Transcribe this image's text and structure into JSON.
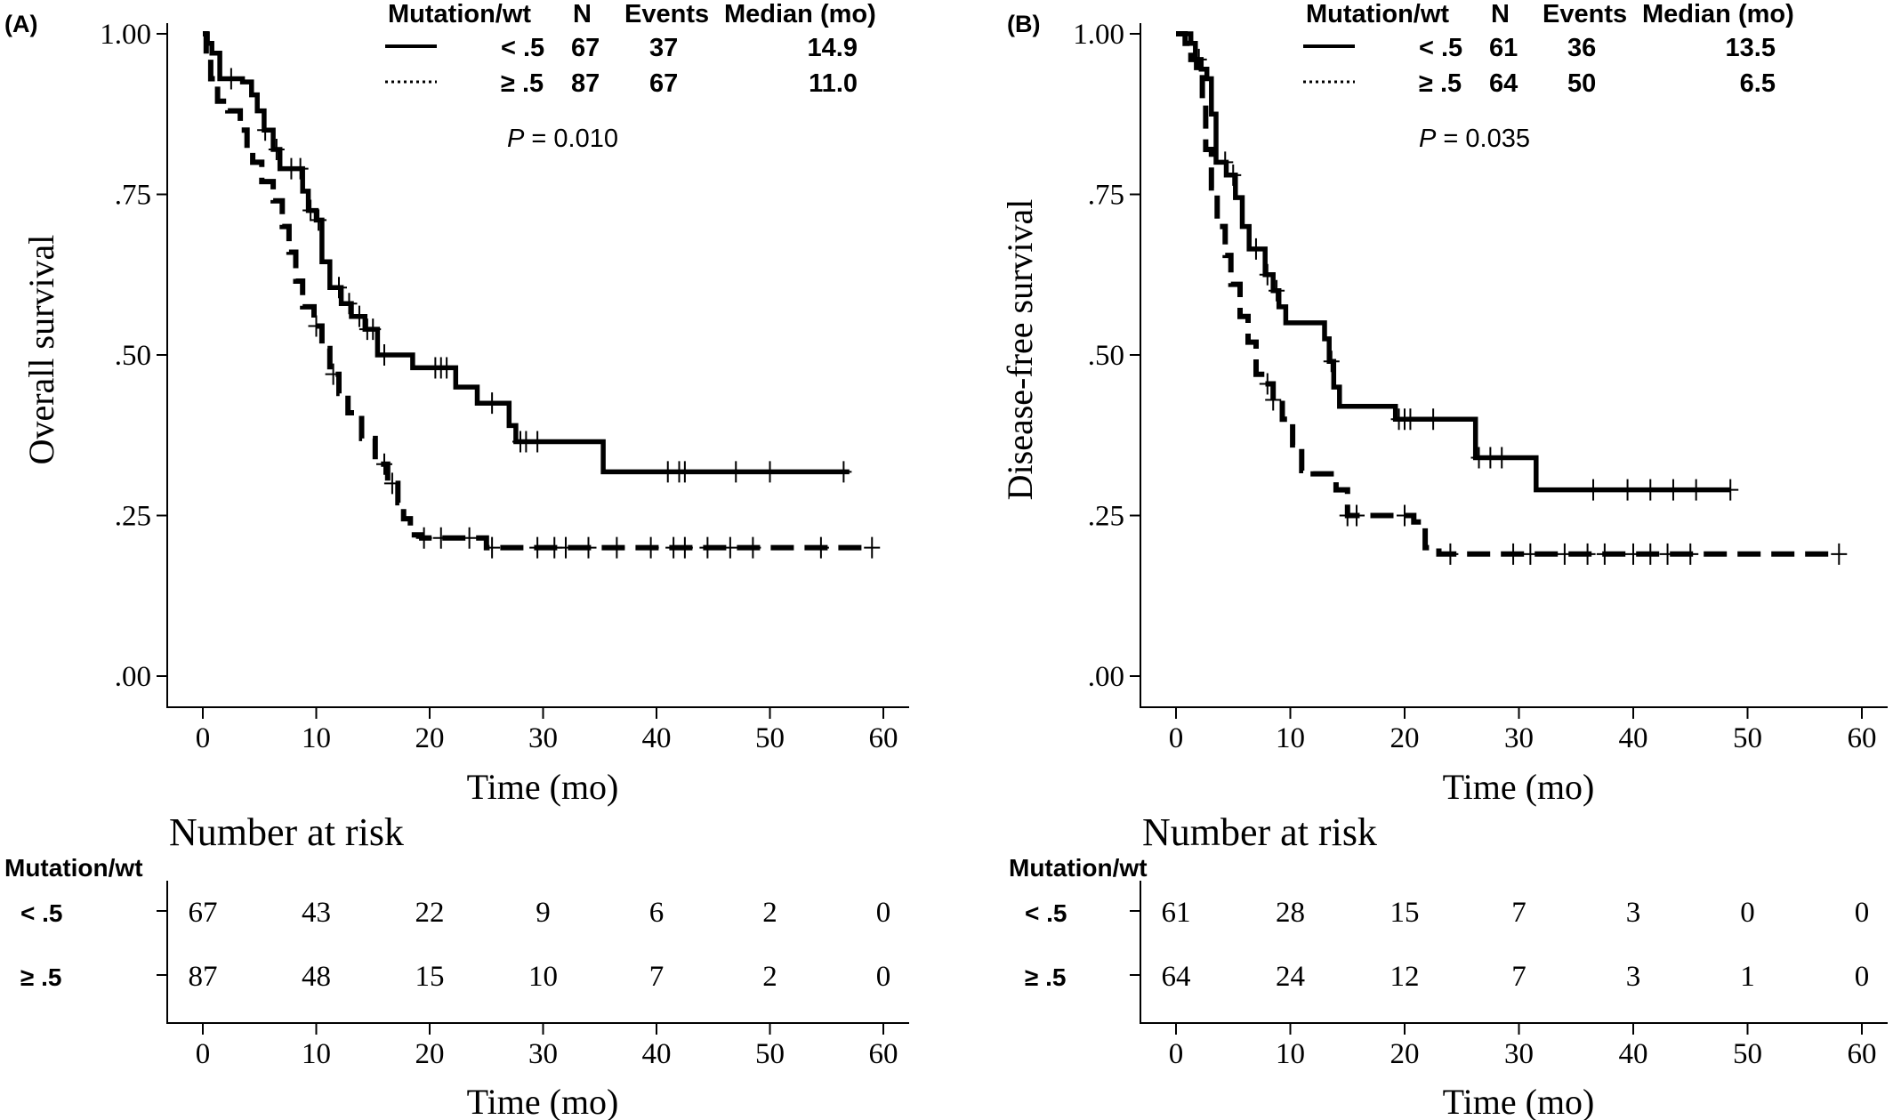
{
  "chart_data": [
    {
      "type": "line",
      "panel_label": "(A)",
      "ylabel": "Overall survival",
      "xlabel": "Time (mo)",
      "xticks": [
        0,
        10,
        20,
        30,
        40,
        50,
        60
      ],
      "yticks": [
        ".00",
        ".25",
        ".50",
        ".75",
        "1.00"
      ],
      "xlim": [
        -3,
        63
      ],
      "ylim": [
        -0.05,
        1.02
      ],
      "pvalue_label": "P",
      "pvalue_text": " = 0.010",
      "legend": {
        "headers": [
          "Mutation/wt",
          "N",
          "Events",
          "Median (mo)"
        ],
        "rows": [
          {
            "group": "< .5",
            "N": "67",
            "events": "37",
            "median": "14.9"
          },
          {
            "group": "≥ .5",
            "N": "87",
            "events": "67",
            "median": "11.0"
          }
        ]
      },
      "series": [
        {
          "style": "solid",
          "steps": [
            [
              0,
              1.0
            ],
            [
              0.4,
              0.985
            ],
            [
              0.8,
              0.97
            ],
            [
              1.5,
              0.93
            ],
            [
              3.5,
              0.925
            ],
            [
              4.3,
              0.905
            ],
            [
              4.8,
              0.88
            ],
            [
              5.4,
              0.85
            ],
            [
              6.2,
              0.82
            ],
            [
              6.8,
              0.79
            ],
            [
              8.8,
              0.755
            ],
            [
              9.3,
              0.725
            ],
            [
              10.0,
              0.71
            ],
            [
              10.5,
              0.645
            ],
            [
              11.2,
              0.605
            ],
            [
              12.2,
              0.58
            ],
            [
              13.1,
              0.56
            ],
            [
              14.3,
              0.54
            ],
            [
              15.4,
              0.5
            ],
            [
              18.5,
              0.48
            ],
            [
              22.3,
              0.45
            ],
            [
              24.2,
              0.425
            ],
            [
              27.0,
              0.39
            ],
            [
              27.6,
              0.365
            ],
            [
              35.3,
              0.318
            ],
            [
              57.0,
              0.318
            ]
          ],
          "censor_x": [
            2.5,
            5.5,
            6.5,
            7.8,
            8.6,
            9.5,
            10.2,
            12.0,
            12.9,
            13.8,
            14.5,
            15.0,
            16.0,
            20.5,
            21.0,
            21.5,
            25.5,
            28.0,
            28.5,
            29.5,
            41.0,
            42.0,
            42.5,
            47.0,
            50.0,
            56.5
          ],
          "values": [
            1.0,
            0.985,
            0.97,
            0.93,
            0.925,
            0.905,
            0.88,
            0.85,
            0.82,
            0.79,
            0.755,
            0.725,
            0.71,
            0.645,
            0.605,
            0.58,
            0.56,
            0.54,
            0.5,
            0.48,
            0.45,
            0.425,
            0.39,
            0.365,
            0.318,
            0.318
          ]
        },
        {
          "style": "dashed",
          "steps": [
            [
              0,
              1.0
            ],
            [
              0.3,
              0.96
            ],
            [
              0.7,
              0.93
            ],
            [
              1.3,
              0.895
            ],
            [
              2.2,
              0.88
            ],
            [
              3.3,
              0.85
            ],
            [
              3.9,
              0.82
            ],
            [
              4.4,
              0.8
            ],
            [
              5.2,
              0.77
            ],
            [
              6.2,
              0.74
            ],
            [
              7.0,
              0.7
            ],
            [
              7.6,
              0.66
            ],
            [
              8.2,
              0.615
            ],
            [
              8.8,
              0.575
            ],
            [
              9.8,
              0.545
            ],
            [
              10.5,
              0.51
            ],
            [
              11.2,
              0.47
            ],
            [
              12.0,
              0.44
            ],
            [
              12.8,
              0.41
            ],
            [
              14.0,
              0.37
            ],
            [
              15.2,
              0.33
            ],
            [
              16.3,
              0.3
            ],
            [
              17.2,
              0.27
            ],
            [
              17.7,
              0.245
            ],
            [
              18.3,
              0.22
            ],
            [
              19.3,
              0.215
            ],
            [
              25.0,
              0.2
            ],
            [
              59.0,
              0.2
            ]
          ],
          "censor_x": [
            10.0,
            11.5,
            16.0,
            16.7,
            19.5,
            21.0,
            23.5,
            25.5,
            29.5,
            31.0,
            32.0,
            34.0,
            36.5,
            39.5,
            41.5,
            42.5,
            44.5,
            46.5,
            48.5,
            54.5,
            59.0
          ],
          "values": [
            1.0,
            0.96,
            0.93,
            0.895,
            0.88,
            0.85,
            0.82,
            0.8,
            0.77,
            0.74,
            0.7,
            0.66,
            0.615,
            0.575,
            0.545,
            0.51,
            0.47,
            0.44,
            0.41,
            0.37,
            0.33,
            0.3,
            0.27,
            0.245,
            0.22,
            0.215,
            0.2,
            0.2
          ]
        }
      ],
      "risk_table": {
        "title": "Number at risk",
        "header": "Mutation/wt",
        "xlabel": "Time (mo)",
        "times": [
          0,
          10,
          20,
          30,
          40,
          50,
          60
        ],
        "rows": [
          {
            "label": "< .5",
            "counts": [
              "67",
              "43",
              "22",
              "9",
              "6",
              "2",
              "0"
            ]
          },
          {
            "label": "≥ .5",
            "counts": [
              "87",
              "48",
              "15",
              "10",
              "7",
              "2",
              "0"
            ]
          }
        ]
      }
    },
    {
      "type": "line",
      "panel_label": "(B)",
      "ylabel": "Disease-free survival",
      "xlabel": "Time (mo)",
      "xticks": [
        0,
        10,
        20,
        30,
        40,
        50,
        60
      ],
      "yticks": [
        ".00",
        ".25",
        ".50",
        ".75",
        "1.00"
      ],
      "xlim": [
        -3,
        63
      ],
      "ylim": [
        -0.05,
        1.02
      ],
      "pvalue_label": "P",
      "pvalue_text": " = 0.035",
      "legend": {
        "headers": [
          "Mutation/wt",
          "N",
          "Events",
          "Median (mo)"
        ],
        "rows": [
          {
            "group": "< .5",
            "N": "61",
            "events": "36",
            "median": "13.5"
          },
          {
            "group": "≥ .5",
            "N": "64",
            "events": "50",
            "median": "6.5"
          }
        ]
      },
      "series": [
        {
          "style": "solid",
          "steps": [
            [
              0,
              1.0
            ],
            [
              1.3,
              0.985
            ],
            [
              1.7,
              0.96
            ],
            [
              2.2,
              0.945
            ],
            [
              2.7,
              0.93
            ],
            [
              3.1,
              0.875
            ],
            [
              3.5,
              0.8
            ],
            [
              4.4,
              0.78
            ],
            [
              5.2,
              0.745
            ],
            [
              5.8,
              0.7
            ],
            [
              6.4,
              0.665
            ],
            [
              7.8,
              0.625
            ],
            [
              8.5,
              0.6
            ],
            [
              9.0,
              0.575
            ],
            [
              9.6,
              0.55
            ],
            [
              13.0,
              0.525
            ],
            [
              13.4,
              0.49
            ],
            [
              13.8,
              0.45
            ],
            [
              14.3,
              0.42
            ],
            [
              19.2,
              0.4
            ],
            [
              26.2,
              0.34
            ],
            [
              31.5,
              0.29
            ],
            [
              48.5,
              0.29
            ]
          ],
          "censor_x": [
            2.0,
            4.3,
            5.0,
            7.0,
            8.0,
            8.8,
            13.6,
            19.5,
            20.0,
            20.5,
            22.5,
            26.5,
            27.5,
            28.5,
            36.5,
            39.5,
            41.5,
            43.5,
            45.5,
            48.5
          ],
          "values": [
            1.0,
            0.985,
            0.96,
            0.945,
            0.93,
            0.875,
            0.8,
            0.78,
            0.745,
            0.7,
            0.665,
            0.625,
            0.6,
            0.575,
            0.55,
            0.525,
            0.49,
            0.45,
            0.42,
            0.4,
            0.34,
            0.29,
            0.29
          ]
        },
        {
          "style": "dashed",
          "steps": [
            [
              0,
              1.0
            ],
            [
              0.8,
              0.985
            ],
            [
              1.3,
              0.96
            ],
            [
              1.8,
              0.94
            ],
            [
              2.3,
              0.89
            ],
            [
              2.6,
              0.82
            ],
            [
              3.1,
              0.76
            ],
            [
              3.6,
              0.7
            ],
            [
              4.3,
              0.655
            ],
            [
              4.8,
              0.61
            ],
            [
              5.6,
              0.56
            ],
            [
              6.3,
              0.52
            ],
            [
              7.0,
              0.47
            ],
            [
              7.8,
              0.455
            ],
            [
              8.5,
              0.43
            ],
            [
              9.3,
              0.4
            ],
            [
              10.2,
              0.36
            ],
            [
              11.0,
              0.32
            ],
            [
              12.0,
              0.315
            ],
            [
              14.0,
              0.29
            ],
            [
              15.0,
              0.25
            ],
            [
              19.0,
              0.25
            ],
            [
              20.8,
              0.24
            ],
            [
              21.8,
              0.2
            ],
            [
              23.0,
              0.19
            ],
            [
              58.0,
              0.19
            ]
          ],
          "censor_x": [
            8.0,
            8.5,
            15.0,
            15.8,
            20.0,
            24.0,
            29.5,
            31.0,
            34.0,
            36.0,
            37.5,
            40.0,
            41.5,
            43.0,
            45.0,
            58.0
          ],
          "values": [
            1.0,
            0.985,
            0.96,
            0.94,
            0.89,
            0.82,
            0.76,
            0.7,
            0.655,
            0.61,
            0.56,
            0.52,
            0.47,
            0.455,
            0.43,
            0.4,
            0.36,
            0.32,
            0.315,
            0.29,
            0.25,
            0.25,
            0.24,
            0.2,
            0.19,
            0.19
          ]
        }
      ],
      "risk_table": {
        "title": "Number at risk",
        "header": "Mutation/wt",
        "xlabel": "Time (mo)",
        "times": [
          0,
          10,
          20,
          30,
          40,
          50,
          60
        ],
        "rows": [
          {
            "label": "< .5",
            "counts": [
              "61",
              "28",
              "15",
              "7",
              "3",
              "0",
              "0"
            ]
          },
          {
            "label": "≥ .5",
            "counts": [
              "64",
              "24",
              "12",
              "7",
              "3",
              "1",
              "0"
            ]
          }
        ]
      }
    }
  ]
}
